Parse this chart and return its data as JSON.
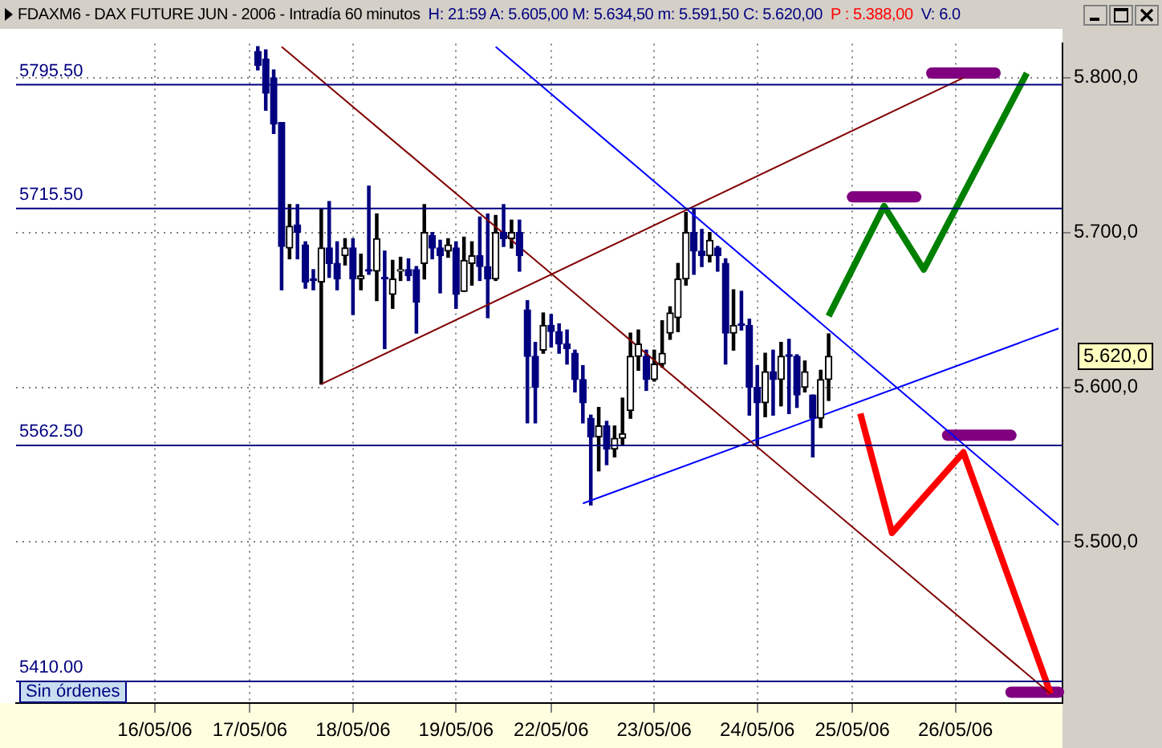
{
  "chart_data": {
    "type": "candlestick",
    "title": "FDAXM6 - DAX FUTURE  JUN - 2006 - Intradía 60 minutos",
    "subtitle": "H: 21:59  A: 5.605,00  M: 5.634,50  m: 5.591,50  C: 5.620,00",
    "annotations": [
      "P : 5.388,00",
      "V: 6.0",
      "Sin órdenes",
      "5.620,0"
    ],
    "colors": [
      null,
      null,
      null,
      null,
      null,
      null,
      null,
      null,
      null,
      null,
      null,
      null,
      null,
      null,
      null,
      null,
      null,
      null,
      null,
      null,
      null,
      null,
      null,
      null,
      null,
      null,
      null,
      null,
      null,
      null,
      "#000080",
      "#000080",
      "#000080",
      "#000080",
      "#000000",
      "#000080",
      "#000080",
      "#000080",
      "#000000",
      "#000080",
      "#000080",
      "#000000",
      "#000080",
      "#000000",
      "#000080",
      "#000000",
      "#000080",
      "#000000",
      "#000000",
      "#000080",
      "#000080",
      "#000000",
      "#000080",
      "#000080",
      "#000000",
      "#000080",
      "#000000",
      "#000000",
      "#000080",
      "#000080",
      "#000000",
      "#000080",
      "#000000",
      "#000080",
      "#000080",
      "#000080",
      "#000000",
      "#000080",
      "#000080",
      "#000080",
      "#000080",
      "#000080",
      "#000080",
      "#000000",
      "#000080",
      "#000000",
      "#000000",
      "#000000",
      "#000000",
      "#000080",
      "#000000",
      "#000000",
      "#000000",
      "#000000",
      "#000000",
      "#000080",
      "#000080",
      "#000000",
      "#000080",
      "#000080",
      "#000000",
      "#000080",
      "#000080",
      "#000080",
      "#000000",
      "#000080",
      "#000000",
      "#000080",
      "#000080",
      "#000000",
      "#000080",
      "#000000",
      "#000000",
      null,
      null,
      null,
      null,
      null,
      null,
      null,
      null,
      null,
      null,
      null,
      null,
      null,
      null,
      null,
      null,
      null,
      null,
      null,
      null,
      null,
      null,
      null,
      null,
      null,
      null,
      null,
      null,
      null
    ],
    "categories": [
      null,
      null,
      null,
      null,
      null,
      null,
      null,
      null,
      null,
      null,
      null,
      null,
      null,
      null,
      null,
      null,
      null,
      "16/05/06",
      null,
      null,
      null,
      null,
      null,
      null,
      null,
      null,
      null,
      null,
      null,
      "17/05/06",
      null,
      null,
      null,
      null,
      null,
      null,
      null,
      null,
      null,
      null,
      null,
      null,
      "18/05/06",
      null,
      null,
      null,
      null,
      null,
      null,
      null,
      null,
      null,
      null,
      null,
      null,
      "19/05/06",
      null,
      null,
      null,
      null,
      null,
      null,
      null,
      null,
      null,
      null,
      null,
      "22/05/06",
      null,
      null,
      null,
      null,
      null,
      null,
      null,
      null,
      null,
      null,
      null,
      null,
      "23/05/06",
      null,
      null,
      null,
      null,
      null,
      null,
      null,
      null,
      null,
      null,
      null,
      null,
      "24/05/06",
      null,
      null,
      null,
      null,
      null,
      null,
      null,
      null,
      null,
      null,
      null,
      "25/05/06",
      null,
      null,
      null,
      null,
      null,
      null,
      null,
      null,
      null,
      null,
      null,
      null,
      "26/05/06",
      null,
      null,
      null,
      null,
      null,
      null,
      null,
      null,
      null,
      null,
      null,
      null,
      null
    ],
    "ohlc": [
      null,
      null,
      null,
      null,
      null,
      null,
      null,
      null,
      null,
      null,
      null,
      null,
      null,
      null,
      null,
      null,
      null,
      null,
      null,
      null,
      null,
      null,
      null,
      null,
      null,
      null,
      null,
      null,
      null,
      null,
      [
        5817,
        5820,
        5805,
        5808
      ],
      [
        5812,
        5818,
        5779,
        5790
      ],
      [
        5800,
        5805,
        5764,
        5770
      ],
      [
        5771,
        5771,
        5663,
        5691
      ],
      [
        5690,
        5718,
        5683,
        5704
      ],
      [
        5705,
        5718,
        5683,
        5700
      ],
      [
        5692,
        5694,
        5664,
        5668
      ],
      [
        5670,
        5676,
        5663,
        5669
      ],
      [
        5668,
        5715,
        5602,
        5690
      ],
      [
        5690,
        5720,
        5671,
        5680
      ],
      [
        5680,
        5694,
        5663,
        5670
      ],
      [
        5685,
        5696,
        5679,
        5690
      ],
      [
        5690,
        5696,
        5647,
        5670
      ],
      [
        5670,
        5686,
        5663,
        5672
      ],
      [
        5676,
        5730,
        5673,
        5675
      ],
      [
        5675,
        5712,
        5656,
        5696
      ],
      [
        5670,
        5688,
        5625,
        5670
      ],
      [
        5660,
        5682,
        5651,
        5670
      ],
      [
        5675,
        5684,
        5669,
        5676
      ],
      [
        5676,
        5683,
        5669,
        5672
      ],
      [
        5676,
        5678,
        5635,
        5655
      ],
      [
        5680,
        5718,
        5670,
        5700
      ],
      [
        5698,
        5700,
        5683,
        5690
      ],
      [
        5690,
        5695,
        5661,
        5685
      ],
      [
        5688,
        5696,
        5684,
        5692
      ],
      [
        5690,
        5694,
        5651,
        5660
      ],
      [
        5662,
        5697,
        5662,
        5682
      ],
      [
        5680,
        5694,
        5666,
        5685
      ],
      [
        5685,
        5710,
        5669,
        5678
      ],
      [
        5678,
        5712,
        5645,
        5670
      ],
      [
        5670,
        5711,
        5669,
        5700
      ],
      [
        5700,
        5718,
        5691,
        5696
      ],
      [
        5696,
        5708,
        5690,
        5700
      ],
      [
        5700,
        5708,
        5675,
        5685
      ],
      [
        5650,
        5656,
        5577,
        5620
      ],
      [
        5620,
        5629,
        5577,
        5600
      ],
      [
        5624,
        5648,
        5622,
        5640
      ],
      [
        5640,
        5647,
        5626,
        5636
      ],
      [
        5636,
        5641,
        5622,
        5628
      ],
      [
        5628,
        5637,
        5615,
        5625
      ],
      [
        5622,
        5624,
        5597,
        5605
      ],
      [
        5605,
        5614,
        5577,
        5590
      ],
      [
        5580,
        5582,
        5524,
        5568
      ],
      [
        5568,
        5587,
        5546,
        5575
      ],
      [
        5575,
        5578,
        5550,
        5560
      ],
      [
        5560,
        5575,
        5555,
        5567
      ],
      [
        5567,
        5593,
        5563,
        5570
      ],
      [
        5585,
        5635,
        5580,
        5620
      ],
      [
        5620,
        5637,
        5611,
        5628
      ],
      [
        5620,
        5624,
        5598,
        5605
      ],
      [
        5605,
        5624,
        5604,
        5615
      ],
      [
        5615,
        5643,
        5613,
        5622
      ],
      [
        5635,
        5652,
        5631,
        5648
      ],
      [
        5645,
        5680,
        5636,
        5670
      ],
      [
        5670,
        5713,
        5666,
        5700
      ],
      [
        5700,
        5715,
        5673,
        5688
      ],
      [
        5688,
        5702,
        5678,
        5685
      ],
      [
        5685,
        5700,
        5681,
        5695
      ],
      [
        5690,
        5691,
        5675,
        5685
      ],
      [
        5680,
        5683,
        5615,
        5635
      ],
      [
        5635,
        5663,
        5624,
        5640
      ],
      [
        5640,
        5662,
        5637,
        5640
      ],
      [
        5640,
        5644,
        5582,
        5600
      ],
      [
        5600,
        5614,
        5563,
        5590
      ],
      [
        5590,
        5622,
        5581,
        5610
      ],
      [
        5610,
        5624,
        5582,
        5605
      ],
      [
        5605,
        5629,
        5588,
        5620
      ],
      [
        5620,
        5631,
        5583,
        5620
      ],
      [
        5620,
        5621,
        5587,
        5595
      ],
      [
        5600,
        5617,
        5597,
        5610
      ],
      [
        5595,
        5595,
        5555,
        5580
      ],
      [
        5580,
        5611,
        5574,
        5605
      ],
      [
        5605,
        5634.5,
        5591.5,
        5620
      ],
      null,
      null,
      null,
      null,
      null,
      null,
      null,
      null,
      null,
      null,
      null,
      null,
      null,
      null,
      null,
      null,
      null,
      null,
      null,
      null,
      null,
      null,
      null,
      null,
      null,
      null,
      null,
      null,
      null
    ],
    "series": [
      {
        "type": "line",
        "color": "#800000",
        "values": [
          null,
          null,
          null,
          null,
          null,
          null,
          null,
          null,
          null,
          null,
          null,
          null,
          null,
          null,
          null,
          null,
          null,
          null,
          null,
          null,
          null,
          null,
          null,
          null,
          null,
          null,
          null,
          null,
          null,
          null,
          null,
          null,
          null,
          5820,
          null,
          null,
          null,
          null,
          null,
          null,
          null,
          null,
          null,
          null,
          null,
          null,
          null,
          null,
          null,
          null,
          null,
          null,
          null,
          null,
          null,
          null,
          null,
          null,
          null,
          null,
          null,
          null,
          null,
          null,
          null,
          null,
          null,
          null,
          null,
          null,
          null,
          null,
          null,
          null,
          null,
          null,
          null,
          null,
          null,
          null,
          null,
          null,
          null,
          null,
          null,
          null,
          null,
          null,
          null,
          null,
          null,
          null,
          null,
          null,
          null,
          null,
          null,
          null,
          null,
          null,
          null,
          null,
          null,
          null,
          null,
          null,
          null,
          null,
          null,
          null,
          null,
          null,
          null,
          null,
          null,
          null,
          null,
          null,
          null,
          null,
          null,
          null,
          null,
          null,
          null,
          null,
          null,
          null,
          null,
          null,
          5402,
          null
        ]
      },
      {
        "type": "line",
        "color": "#800000",
        "values": [
          null,
          null,
          null,
          null,
          null,
          null,
          null,
          null,
          null,
          null,
          null,
          null,
          null,
          null,
          null,
          null,
          null,
          null,
          null,
          null,
          null,
          null,
          null,
          null,
          null,
          null,
          null,
          null,
          null,
          null,
          null,
          null,
          null,
          null,
          null,
          null,
          null,
          null,
          5602,
          null,
          null,
          null,
          null,
          null,
          null,
          null,
          null,
          null,
          null,
          null,
          null,
          null,
          null,
          null,
          null,
          null,
          null,
          null,
          null,
          null,
          null,
          null,
          null,
          null,
          null,
          null,
          null,
          null,
          null,
          null,
          null,
          null,
          null,
          null,
          null,
          null,
          null,
          null,
          null,
          null,
          null,
          null,
          null,
          null,
          null,
          null,
          null,
          null,
          null,
          null,
          null,
          null,
          null,
          null,
          null,
          null,
          null,
          null,
          null,
          null,
          null,
          null,
          null,
          null,
          null,
          null,
          null,
          null,
          null,
          null,
          null,
          null,
          null,
          null,
          null,
          null,
          null,
          null,
          null,
          5800,
          null,
          null,
          null,
          null,
          null,
          null,
          null,
          null,
          null,
          null,
          null,
          null
        ]
      },
      {
        "type": "line",
        "color": "#0000ff",
        "values": [
          null,
          null,
          null,
          null,
          null,
          null,
          null,
          null,
          null,
          null,
          null,
          null,
          null,
          null,
          null,
          null,
          null,
          null,
          null,
          null,
          null,
          null,
          null,
          null,
          null,
          null,
          null,
          null,
          null,
          null,
          null,
          null,
          null,
          null,
          null,
          null,
          null,
          null,
          null,
          null,
          null,
          null,
          null,
          null,
          null,
          null,
          null,
          null,
          null,
          null,
          null,
          null,
          null,
          null,
          null,
          null,
          null,
          null,
          null,
          null,
          5820,
          null,
          null,
          null,
          null,
          null,
          null,
          null,
          null,
          null,
          null,
          null,
          null,
          null,
          null,
          null,
          null,
          null,
          null,
          null,
          null,
          null,
          null,
          null,
          null,
          null,
          null,
          null,
          null,
          null,
          null,
          null,
          null,
          null,
          null,
          null,
          null,
          null,
          null,
          null,
          null,
          null,
          null,
          null,
          null,
          null,
          null,
          null,
          null,
          null,
          null,
          null,
          null,
          null,
          null,
          null,
          null,
          null,
          null,
          null,
          null,
          null,
          null,
          null,
          null,
          null,
          null,
          null,
          null,
          null,
          null,
          5511
        ]
      },
      {
        "type": "line",
        "color": "#0000ff",
        "values": [
          null,
          null,
          null,
          null,
          null,
          null,
          null,
          null,
          null,
          null,
          null,
          null,
          null,
          null,
          null,
          null,
          null,
          null,
          null,
          null,
          null,
          null,
          null,
          null,
          null,
          null,
          null,
          null,
          null,
          null,
          null,
          null,
          null,
          null,
          null,
          null,
          null,
          null,
          null,
          null,
          null,
          null,
          null,
          null,
          null,
          null,
          null,
          null,
          null,
          null,
          null,
          null,
          null,
          null,
          null,
          null,
          null,
          null,
          null,
          null,
          null,
          null,
          null,
          null,
          null,
          null,
          null,
          null,
          null,
          null,
          null,
          5525,
          null,
          null,
          null,
          null,
          null,
          null,
          null,
          null,
          null,
          null,
          null,
          null,
          null,
          null,
          null,
          null,
          null,
          null,
          null,
          null,
          null,
          null,
          null,
          null,
          null,
          null,
          null,
          null,
          null,
          null,
          null,
          null,
          null,
          null,
          null,
          null,
          null,
          null,
          null,
          null,
          null,
          null,
          null,
          null,
          null,
          null,
          null,
          null,
          null,
          null,
          null,
          null,
          null,
          null,
          null,
          null,
          null,
          null,
          null,
          5638
        ]
      },
      {
        "type": "line",
        "color": "#008000",
        "values": [
          null,
          null,
          null,
          null,
          null,
          null,
          null,
          null,
          null,
          null,
          null,
          null,
          null,
          null,
          null,
          null,
          null,
          null,
          null,
          null,
          null,
          null,
          null,
          null,
          null,
          null,
          null,
          null,
          null,
          null,
          null,
          null,
          null,
          null,
          null,
          null,
          null,
          null,
          null,
          null,
          null,
          null,
          null,
          null,
          null,
          null,
          null,
          null,
          null,
          null,
          null,
          null,
          null,
          null,
          null,
          null,
          null,
          null,
          null,
          null,
          null,
          null,
          null,
          null,
          null,
          null,
          null,
          null,
          null,
          null,
          null,
          null,
          null,
          null,
          null,
          null,
          null,
          null,
          null,
          null,
          null,
          null,
          null,
          null,
          null,
          null,
          null,
          null,
          null,
          null,
          null,
          null,
          null,
          null,
          null,
          null,
          null,
          null,
          null,
          null,
          null,
          null,
          5646,
          null,
          null,
          null,
          null,
          null,
          null,
          5717,
          null,
          null,
          null,
          null,
          5676,
          null,
          null,
          null,
          null,
          null,
          null,
          null,
          null,
          null,
          null,
          null,
          null,
          5803,
          null,
          null,
          null,
          null
        ]
      },
      {
        "type": "line",
        "color": "#ff0000",
        "values": [
          null,
          null,
          null,
          null,
          null,
          null,
          null,
          null,
          null,
          null,
          null,
          null,
          null,
          null,
          null,
          null,
          null,
          null,
          null,
          null,
          null,
          null,
          null,
          null,
          null,
          null,
          null,
          null,
          null,
          null,
          null,
          null,
          null,
          null,
          null,
          null,
          null,
          null,
          null,
          null,
          null,
          null,
          null,
          null,
          null,
          null,
          null,
          null,
          null,
          null,
          null,
          null,
          null,
          null,
          null,
          null,
          null,
          null,
          null,
          null,
          null,
          null,
          null,
          null,
          null,
          null,
          null,
          null,
          null,
          null,
          null,
          null,
          null,
          null,
          null,
          null,
          null,
          null,
          null,
          null,
          null,
          null,
          null,
          null,
          null,
          null,
          null,
          null,
          null,
          null,
          null,
          null,
          null,
          null,
          null,
          null,
          null,
          null,
          null,
          null,
          null,
          null,
          null,
          null,
          null,
          null,
          5583,
          null,
          null,
          null,
          5506,
          null,
          null,
          null,
          null,
          null,
          null,
          null,
          null,
          5558,
          null,
          null,
          null,
          null,
          null,
          null,
          null,
          null,
          null,
          null,
          5402,
          null
        ]
      },
      {
        "type": "line",
        "color": "#800080",
        "values": [
          null,
          null,
          null,
          null,
          null,
          null,
          null,
          null,
          null,
          null,
          null,
          null,
          null,
          null,
          null,
          null,
          null,
          null,
          null,
          null,
          null,
          null,
          null,
          null,
          null,
          null,
          null,
          null,
          null,
          null,
          null,
          null,
          null,
          null,
          null,
          null,
          null,
          null,
          null,
          null,
          null,
          null,
          null,
          null,
          null,
          null,
          null,
          null,
          null,
          null,
          null,
          null,
          null,
          null,
          null,
          null,
          null,
          null,
          null,
          null,
          null,
          null,
          null,
          null,
          null,
          null,
          null,
          null,
          null,
          null,
          null,
          null,
          null,
          null,
          null,
          null,
          null,
          null,
          null,
          null,
          null,
          null,
          null,
          null,
          null,
          null,
          null,
          null,
          null,
          null,
          null,
          null,
          null,
          null,
          null,
          null,
          null,
          null,
          null,
          null,
          null,
          null,
          null,
          null,
          null,
          null,
          null,
          null,
          null,
          null,
          null,
          null,
          null,
          null,
          null,
          5803,
          null,
          null,
          null,
          null,
          null,
          null,
          null,
          5803,
          null,
          null,
          null,
          null,
          null,
          null,
          null,
          null
        ]
      },
      {
        "type": "line",
        "color": "#800080",
        "values": [
          null,
          null,
          null,
          null,
          null,
          null,
          null,
          null,
          null,
          null,
          null,
          null,
          null,
          null,
          null,
          null,
          null,
          null,
          null,
          null,
          null,
          null,
          null,
          null,
          null,
          null,
          null,
          null,
          null,
          null,
          null,
          null,
          null,
          null,
          null,
          null,
          null,
          null,
          null,
          null,
          null,
          null,
          null,
          null,
          null,
          null,
          null,
          null,
          null,
          null,
          null,
          null,
          null,
          null,
          null,
          null,
          null,
          null,
          null,
          null,
          null,
          null,
          null,
          null,
          null,
          null,
          null,
          null,
          null,
          null,
          null,
          null,
          null,
          null,
          null,
          null,
          null,
          null,
          null,
          null,
          null,
          null,
          null,
          null,
          null,
          null,
          null,
          null,
          null,
          null,
          null,
          null,
          null,
          null,
          null,
          null,
          null,
          null,
          null,
          null,
          null,
          null,
          null,
          null,
          null,
          5723,
          null,
          null,
          null,
          null,
          null,
          null,
          null,
          5723,
          null,
          null,
          null,
          null,
          null,
          null,
          null,
          null,
          null,
          null,
          null,
          null,
          null,
          null,
          null,
          null,
          null,
          null
        ]
      },
      {
        "type": "line",
        "color": "#800080",
        "values": [
          null,
          null,
          null,
          null,
          null,
          null,
          null,
          null,
          null,
          null,
          null,
          null,
          null,
          null,
          null,
          null,
          null,
          null,
          null,
          null,
          null,
          null,
          null,
          null,
          null,
          null,
          null,
          null,
          null,
          null,
          null,
          null,
          null,
          null,
          null,
          null,
          null,
          null,
          null,
          null,
          null,
          null,
          null,
          null,
          null,
          null,
          null,
          null,
          null,
          null,
          null,
          null,
          null,
          null,
          null,
          null,
          null,
          null,
          null,
          null,
          null,
          null,
          null,
          null,
          null,
          null,
          null,
          null,
          null,
          null,
          null,
          null,
          null,
          null,
          null,
          null,
          null,
          null,
          null,
          null,
          null,
          null,
          null,
          null,
          null,
          null,
          null,
          null,
          null,
          null,
          null,
          null,
          null,
          null,
          null,
          null,
          null,
          null,
          null,
          null,
          null,
          null,
          null,
          null,
          null,
          null,
          null,
          null,
          null,
          null,
          null,
          null,
          null,
          null,
          null,
          null,
          null,
          5569,
          null,
          null,
          null,
          null,
          null,
          null,
          null,
          5569,
          null,
          null,
          null,
          null,
          null,
          null
        ]
      },
      {
        "type": "line",
        "color": "#800080",
        "values": [
          null,
          null,
          null,
          null,
          null,
          null,
          null,
          null,
          null,
          null,
          null,
          null,
          null,
          null,
          null,
          null,
          null,
          null,
          null,
          null,
          null,
          null,
          null,
          null,
          null,
          null,
          null,
          null,
          null,
          null,
          null,
          null,
          null,
          null,
          null,
          null,
          null,
          null,
          null,
          null,
          null,
          null,
          null,
          null,
          null,
          null,
          null,
          null,
          null,
          null,
          null,
          null,
          null,
          null,
          null,
          null,
          null,
          null,
          null,
          null,
          null,
          null,
          null,
          null,
          null,
          null,
          null,
          null,
          null,
          null,
          null,
          null,
          null,
          null,
          null,
          null,
          null,
          null,
          null,
          null,
          null,
          null,
          null,
          null,
          null,
          null,
          null,
          null,
          null,
          null,
          null,
          null,
          null,
          null,
          null,
          null,
          null,
          null,
          null,
          null,
          null,
          null,
          null,
          null,
          null,
          null,
          null,
          null,
          null,
          null,
          null,
          null,
          null,
          null,
          null,
          null,
          null,
          null,
          null,
          null,
          null,
          null,
          null,
          null,
          null,
          5403,
          null,
          null,
          null,
          null,
          null,
          5403
        ]
      }
    ],
    "ref_lines": [
      {
        "axis": "y",
        "value": 5795.5,
        "label": "5795.50",
        "color": "#000080"
      },
      {
        "axis": "y",
        "value": 5715.5,
        "label": "5715.50",
        "color": "#000080"
      },
      {
        "axis": "y",
        "value": 5562.5,
        "label": "5562.50",
        "color": "#000080"
      },
      {
        "axis": "y",
        "value": 5410,
        "label": "5410.00",
        "color": "#000080"
      }
    ],
    "ylim": [
      5396,
      5822
    ],
    "yticks": [
      {
        "value": 5500,
        "label": "5.500,0"
      },
      {
        "value": 5600,
        "label": "5.600,0"
      },
      {
        "value": 5700,
        "label": "5.700,0"
      },
      {
        "value": 5800,
        "label": "5.800,0"
      }
    ],
    "grid": true,
    "legend": false
  }
}
